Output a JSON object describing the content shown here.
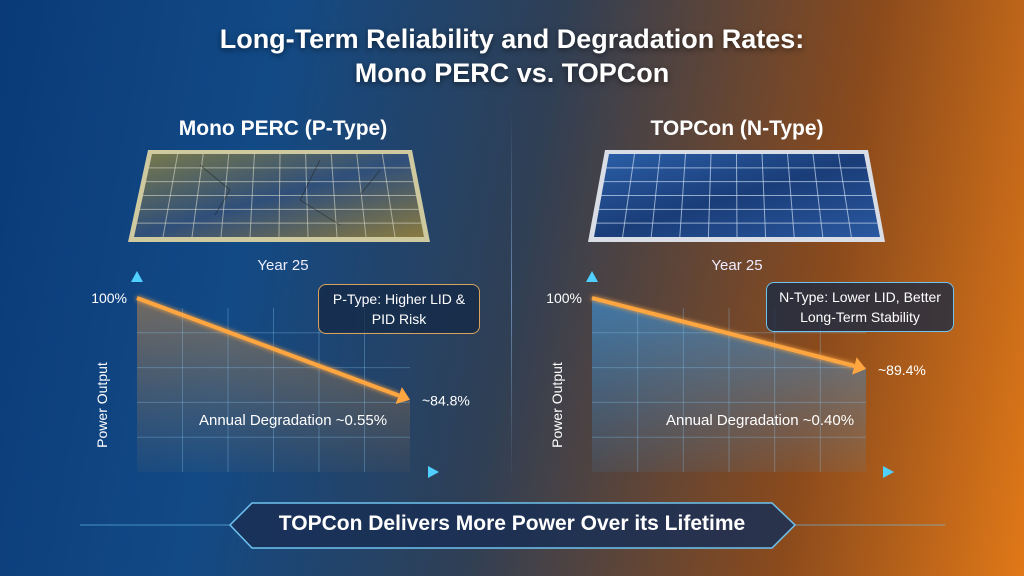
{
  "title_line1": "Long-Term Reliability and Degradation Rates:",
  "title_line2": "Mono PERC vs. TOPCon",
  "left": {
    "heading": "Mono PERC (P-Type)",
    "panel_caption": "Year 25",
    "note": "P-Type: Higher LID & PID Risk",
    "note_border": "#d9a25a",
    "panel_icon": "degraded-solar-panel"
  },
  "right": {
    "heading": "TOPCon (N-Type)",
    "panel_caption": "Year 25",
    "note": "N-Type: Lower LID, Better Long-Term Stability",
    "note_border": "#6ec3f0",
    "panel_icon": "solar-panel"
  },
  "banner": "TOPCon Delivers More Power Over its Lifetime",
  "colors": {
    "line": "#ffa640",
    "axis": "#4fd0ff",
    "fill_left": "#c0884a",
    "fill_right": "#3f8fd0"
  },
  "chart_data": [
    {
      "type": "line",
      "ylabel": "Power Output",
      "y_tick_labels": [
        "100%"
      ],
      "x": [
        "start",
        "Year 25"
      ],
      "values": [
        100,
        84.8
      ],
      "end_label": "~84.8%",
      "annotation": "Annual Degradation ~0.55%",
      "grid": true
    },
    {
      "type": "line",
      "ylabel": "Power Output",
      "y_tick_labels": [
        "100%"
      ],
      "x": [
        "start",
        "Year 25"
      ],
      "values": [
        100,
        89.4
      ],
      "end_label": "~89.4%",
      "annotation": "Annual Degradation ~0.40%",
      "grid": true
    }
  ]
}
